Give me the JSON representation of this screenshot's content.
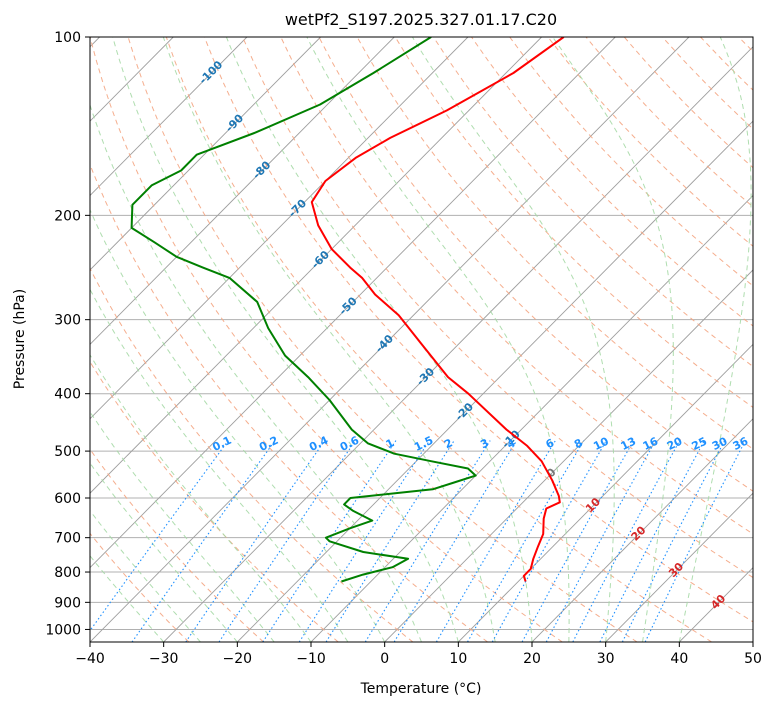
{
  "chart_data": {
    "type": "line",
    "chart_kind": "skew-T log-P diagram",
    "title": "wetPf2_S197.2025.327.01.17.C20",
    "xlabel": "Temperature (°C)",
    "ylabel": "Pressure (hPa)",
    "xlim": [
      -40,
      50
    ],
    "ylim_hpa": [
      1050,
      100
    ],
    "y_scale": "log",
    "x_ticks": [
      -40,
      -30,
      -20,
      -10,
      0,
      10,
      20,
      30,
      40,
      50
    ],
    "y_ticks": [
      100,
      200,
      300,
      400,
      500,
      600,
      700,
      800,
      900,
      1000
    ],
    "grid": true,
    "colors": {
      "temperature": "#ff0000",
      "dewpoint": "#008000",
      "isotherm": "#9e9e9e",
      "dry_adiabat": "#f4a582",
      "moist_adiabat": "#a6d9a6",
      "mixing_ratio": "#1e90ff",
      "isotherm_label_cold": "#1f77b4",
      "isotherm_label_warm": "#d62728",
      "isobar": "#b0b0b0"
    },
    "isotherm_labels": [
      {
        "t": -100,
        "p": 115
      },
      {
        "t": -90,
        "p": 140
      },
      {
        "t": -80,
        "p": 168
      },
      {
        "t": -70,
        "p": 195
      },
      {
        "t": -60,
        "p": 238
      },
      {
        "t": -50,
        "p": 285
      },
      {
        "t": -40,
        "p": 330
      },
      {
        "t": -30,
        "p": 375
      },
      {
        "t": -20,
        "p": 430
      },
      {
        "t": -10,
        "p": 478
      },
      {
        "t": 0,
        "p": 545
      },
      {
        "t": 10,
        "p": 618
      },
      {
        "t": 20,
        "p": 690
      },
      {
        "t": 30,
        "p": 795
      },
      {
        "t": 40,
        "p": 900
      }
    ],
    "mixing_ratio_labels": [
      "0.1",
      "0.2",
      "0.4",
      "0.6",
      "1",
      "1.5",
      "2",
      "3",
      "4",
      "6",
      "8",
      "10",
      "13",
      "16",
      "20",
      "25",
      "30",
      "36"
    ],
    "series": [
      {
        "name": "Temperature",
        "role": "temperature",
        "points": [
          [
            -57,
            100
          ],
          [
            -59,
            115
          ],
          [
            -63,
            133
          ],
          [
            -67,
            148
          ],
          [
            -69,
            160
          ],
          [
            -70,
            175
          ],
          [
            -69,
            190
          ],
          [
            -65,
            208
          ],
          [
            -60,
            228
          ],
          [
            -55,
            245
          ],
          [
            -52,
            255
          ],
          [
            -48,
            272
          ],
          [
            -42,
            295
          ],
          [
            -35,
            330
          ],
          [
            -27,
            375
          ],
          [
            -22,
            400
          ],
          [
            -12,
            460
          ],
          [
            -7,
            490
          ],
          [
            -3,
            520
          ],
          [
            1,
            560
          ],
          [
            4,
            595
          ],
          [
            5,
            610
          ],
          [
            4,
            625
          ],
          [
            5,
            650
          ],
          [
            7,
            690
          ],
          [
            8,
            725
          ],
          [
            9,
            760
          ],
          [
            10,
            790
          ],
          [
            10,
            812
          ],
          [
            11,
            830
          ]
        ]
      },
      {
        "name": "Dewpoint",
        "role": "dewpoint",
        "points": [
          [
            -75,
            100
          ],
          [
            -78,
            115
          ],
          [
            -81,
            130
          ],
          [
            -86,
            145
          ],
          [
            -91,
            158
          ],
          [
            -91,
            168
          ],
          [
            -93,
            178
          ],
          [
            -93,
            192
          ],
          [
            -90,
            210
          ],
          [
            -85,
            222
          ],
          [
            -80,
            235
          ],
          [
            -75,
            245
          ],
          [
            -70,
            255
          ],
          [
            -63,
            280
          ],
          [
            -58,
            310
          ],
          [
            -52,
            345
          ],
          [
            -46,
            375
          ],
          [
            -40,
            410
          ],
          [
            -33,
            460
          ],
          [
            -29,
            485
          ],
          [
            -24,
            505
          ],
          [
            -18,
            520
          ],
          [
            -12,
            535
          ],
          [
            -10,
            550
          ],
          [
            -12,
            565
          ],
          [
            -14,
            580
          ],
          [
            -24,
            600
          ],
          [
            -24,
            615
          ],
          [
            -22,
            630
          ],
          [
            -18,
            655
          ],
          [
            -20,
            675
          ],
          [
            -22,
            700
          ],
          [
            -21,
            710
          ],
          [
            -15,
            740
          ],
          [
            -8,
            760
          ],
          [
            -9,
            785
          ],
          [
            -12,
            808
          ],
          [
            -14,
            830
          ]
        ]
      }
    ]
  }
}
